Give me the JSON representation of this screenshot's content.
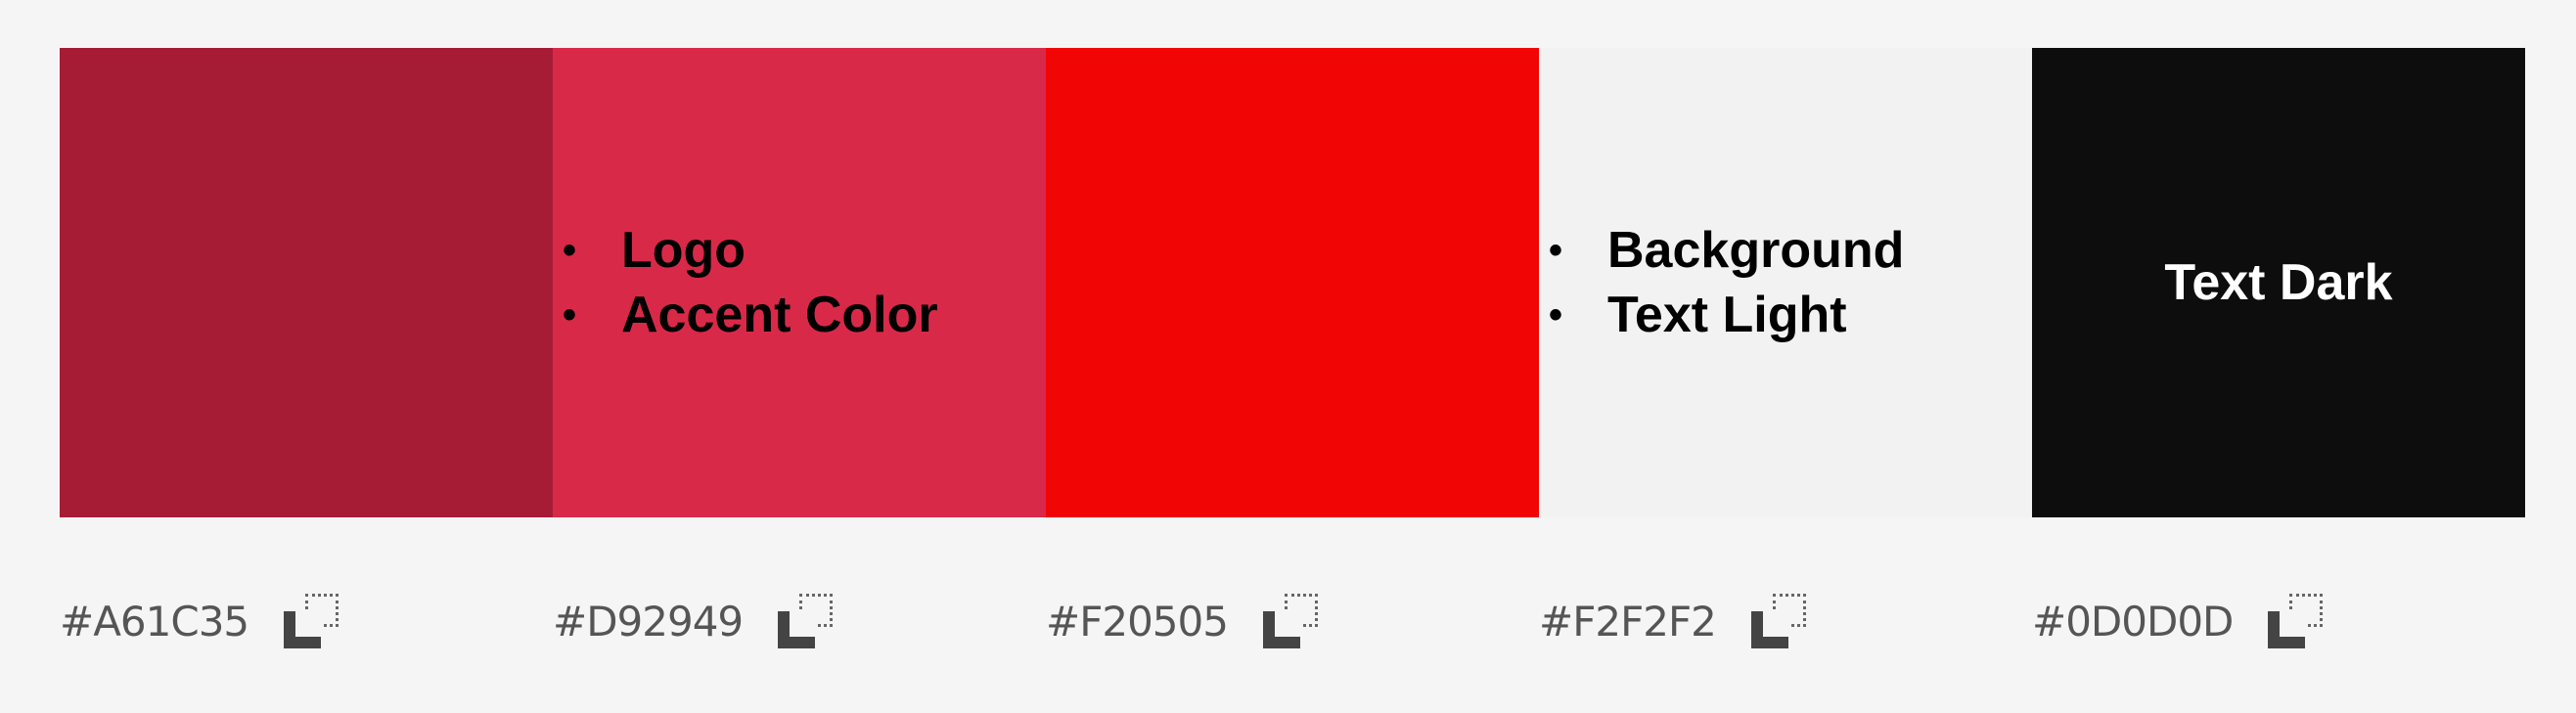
{
  "swatches": [
    {
      "color": "#A61C35",
      "hex_label": "#A61C35",
      "usage": []
    },
    {
      "color": "#D92949",
      "hex_label": "#D92949",
      "usage": [
        "Logo",
        "Accent Color"
      ]
    },
    {
      "color": "#F20505",
      "hex_label": "#F20505",
      "usage": []
    },
    {
      "color": "#F2F2F2",
      "hex_label": "#F2F2F2",
      "usage": [
        "Background",
        "Text Light"
      ]
    },
    {
      "color": "#0D0D0D",
      "hex_label": "#0D0D0D",
      "usage_single": "Text Dark"
    }
  ],
  "icons": {
    "copy": "copy-icon"
  }
}
